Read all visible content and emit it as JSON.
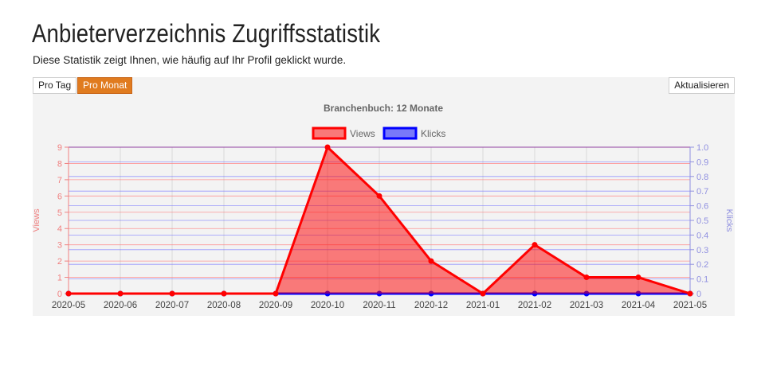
{
  "page": {
    "title": "Anbieterverzeichnis Zugriffsstatistik",
    "subtitle": "Diese Statistik zeigt Ihnen, wie häufig auf Ihr Profil geklickt wurde."
  },
  "toolbar": {
    "day_label": "Pro Tag",
    "month_label": "Pro Monat",
    "refresh_label": "Aktualisieren",
    "active": "month"
  },
  "colors": {
    "views": "#ff0000",
    "views_fill": "rgba(255,0,0,0.5)",
    "clicks": "#0000ff",
    "clicks_fill": "rgba(0,0,255,0.5)",
    "active_button": "#e07b1f"
  },
  "chart_data": {
    "type": "area",
    "title": "Branchenbuch: 12 Monate",
    "x": [
      "2020-05",
      "2020-06",
      "2020-07",
      "2020-08",
      "2020-09",
      "2020-10",
      "2020-11",
      "2020-12",
      "2021-01",
      "2021-02",
      "2021-03",
      "2021-04",
      "2021-05"
    ],
    "series": [
      {
        "name": "Views",
        "axis": "left",
        "values": [
          0,
          0,
          0,
          0,
          0,
          9,
          6,
          2,
          0,
          3,
          1,
          1,
          0
        ]
      },
      {
        "name": "Klicks",
        "axis": "right",
        "values": [
          0,
          0,
          0,
          0,
          0,
          0,
          0,
          0,
          0,
          0,
          0,
          0,
          0
        ]
      }
    ],
    "ylabel_left": "Views",
    "ylabel_right": "Klicks",
    "ylim_left": [
      0,
      9
    ],
    "ylim_right": [
      0,
      1
    ],
    "yticks_left": [
      "0",
      "1",
      "2",
      "3",
      "4",
      "5",
      "6",
      "7",
      "8",
      "9"
    ],
    "yticks_right": [
      "0",
      "0.1",
      "0.2",
      "0.3",
      "0.4",
      "0.5",
      "0.6",
      "0.7",
      "0.8",
      "0.9",
      "1.0"
    ],
    "legend": "top-center",
    "grid": true
  }
}
